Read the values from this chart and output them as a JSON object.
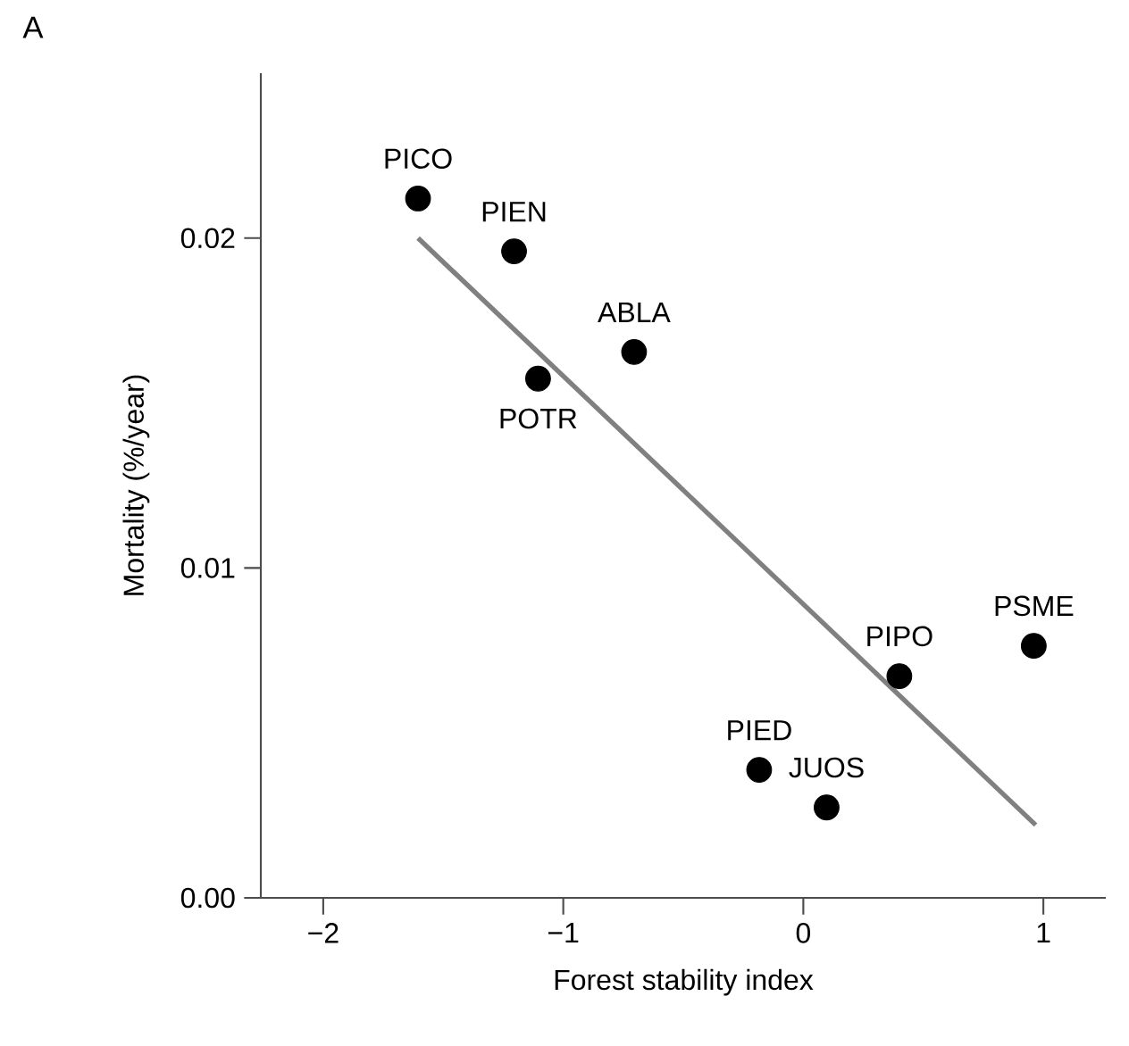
{
  "chart_data": {
    "type": "scatter",
    "xlabel": "Forest stability index",
    "ylabel": "Mortality (%/year)",
    "xlim": [
      -2.26,
      1.26
    ],
    "ylim": [
      0,
      0.025
    ],
    "xticks": [
      {
        "value": -2,
        "label": "−2"
      },
      {
        "value": -1,
        "label": "−1"
      },
      0,
      1
    ],
    "yticks": [
      {
        "value": 0,
        "label": "0.00"
      },
      {
        "value": 0.01,
        "label": "0.01"
      },
      {
        "value": 0.02,
        "label": "0.02"
      }
    ],
    "grid": false,
    "series": [
      {
        "marker": "circle",
        "color": "#000000",
        "x": [
          -1.605,
          -1.205,
          -0.705,
          -1.105,
          0.4,
          0.96,
          -0.184,
          0.097
        ],
        "values": [
          0.0212,
          0.0196,
          0.01655,
          0.01574,
          0.00672,
          0.00764,
          0.00388,
          0.00274
        ]
      },
      {
        "type": "line",
        "marker": "none",
        "color": "#808080",
        "x": [
          -1.605,
          0.968
        ],
        "values": [
          0.02,
          0.00221
        ]
      }
    ],
    "annotations": [
      "A",
      {
        "text": "PICO",
        "x": -1.605,
        "y": 0.0212
      },
      {
        "text": "PIEN",
        "x": -1.205,
        "y": 0.0196
      },
      {
        "text": "ABLA",
        "x": -0.705,
        "y": 0.01655
      },
      {
        "text": "POTR",
        "x": -1.105,
        "y": 0.01574
      },
      {
        "text": "PIPO",
        "x": 0.4,
        "y": 0.00672
      },
      {
        "text": "PSME",
        "x": 0.96,
        "y": 0.00764
      },
      {
        "text": "PIED",
        "x": -0.184,
        "y": 0.00388
      },
      {
        "text": "JUOS",
        "x": 0.097,
        "y": 0.00274
      }
    ]
  }
}
